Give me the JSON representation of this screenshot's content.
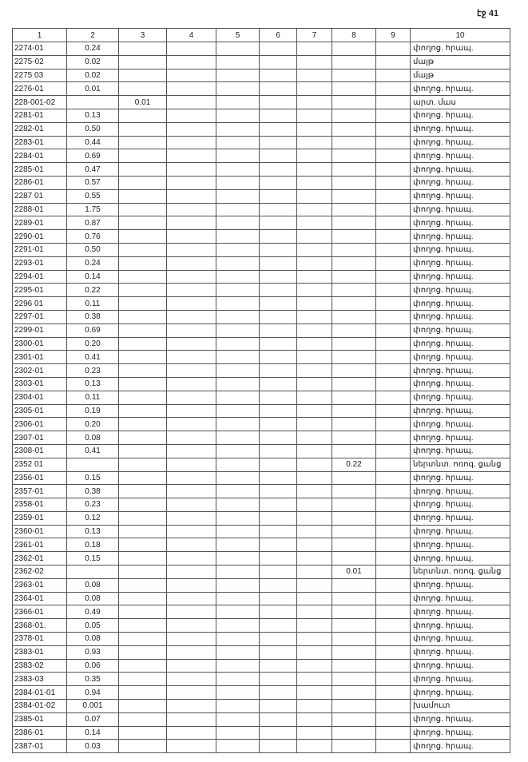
{
  "page_label": "էջ 41",
  "headers": [
    "1",
    "2",
    "3",
    "4",
    "5",
    "6",
    "7",
    "8",
    "9",
    "10"
  ],
  "rows": [
    [
      "2274-01",
      "0.24",
      "",
      "",
      "",
      "",
      "",
      "",
      "",
      "փողոց. հրապ."
    ],
    [
      "2275-02",
      "0.02",
      "",
      "",
      "",
      "",
      "",
      "",
      "",
      "մայթ"
    ],
    [
      "2275 03",
      "0.02",
      "",
      "",
      "",
      "",
      "",
      "",
      "",
      "մայթ"
    ],
    [
      "2276-01",
      "0.01",
      "",
      "",
      "",
      "",
      "",
      "",
      "",
      "փողոց. հրապ."
    ],
    [
      "228-001-02",
      "",
      "0.01",
      "",
      "",
      "",
      "",
      "",
      "",
      "արտ. մաս"
    ],
    [
      "2281-01",
      "0.13",
      "",
      "",
      "",
      "",
      "",
      "",
      "",
      "փողոց. հրապ."
    ],
    [
      "2282-01",
      "0.50",
      "",
      "",
      "",
      "",
      "",
      "",
      "",
      "փողոց. հրապ."
    ],
    [
      "2283-01",
      "0.44",
      "",
      "",
      "",
      "",
      "",
      "",
      "",
      "փողոց. հրապ."
    ],
    [
      "2284-01",
      "0.69",
      "",
      "",
      "",
      "",
      "",
      "",
      "",
      "փողոց. հրապ."
    ],
    [
      "2285-01",
      "0.47",
      "",
      "",
      "",
      "",
      "",
      "",
      "",
      "փողոց. հրապ."
    ],
    [
      "2286-01",
      "0.57",
      "",
      "",
      "",
      "",
      "",
      "",
      "",
      "փողոց. հրապ."
    ],
    [
      "2287 01",
      "0.55",
      "",
      "",
      "",
      "",
      "",
      "",
      "",
      "փողոց. հրապ."
    ],
    [
      "2288-01",
      "1.75",
      "",
      "",
      "",
      "",
      "",
      "",
      "",
      "փողոց. հրապ."
    ],
    [
      "2289-01",
      "0.87",
      "",
      "",
      "",
      "",
      "",
      "",
      "",
      "փողոց. հրապ."
    ],
    [
      "2290-01",
      "0.76",
      "",
      "",
      "",
      "",
      "",
      "",
      "",
      "փողոց. հրապ."
    ],
    [
      "2291-01",
      "0.50",
      "",
      "",
      "",
      "",
      "",
      "",
      "",
      "փողոց. հրապ."
    ],
    [
      "2293-01",
      "0.24",
      "",
      "",
      "",
      "",
      "",
      "",
      "",
      "փողոց. հրապ."
    ],
    [
      "2294-01",
      "0.14",
      "",
      "",
      "",
      "",
      "",
      "",
      "",
      "փողոց. հրապ."
    ],
    [
      "2295-01",
      "0.22",
      "",
      "",
      "",
      "",
      "",
      "",
      "",
      "փողոց. հրապ."
    ],
    [
      "2296 01",
      "0.11",
      "",
      "",
      "",
      "",
      "",
      "",
      "",
      "փողոց. հրապ."
    ],
    [
      "2297-01",
      "0.38",
      "",
      "",
      "",
      "",
      "",
      "",
      "",
      "փողոց. հրապ."
    ],
    [
      "2299-01",
      "0.69",
      "",
      "",
      "",
      "",
      "",
      "",
      "",
      "փողոց. հրապ."
    ],
    [
      "2300-01",
      "0.20",
      "",
      "",
      "",
      "",
      "",
      "",
      "",
      "փողոց. հրապ."
    ],
    [
      "2301-01",
      "0.41",
      "",
      "",
      "",
      "",
      "",
      "",
      "",
      "փողոց. հրապ."
    ],
    [
      "2302-01",
      "0.23",
      "",
      "",
      "",
      "",
      "",
      "",
      "",
      "փողոց. հրապ."
    ],
    [
      "2303-01",
      "0.13",
      "",
      "",
      "",
      "",
      "",
      "",
      "",
      "փողոց. հրապ."
    ],
    [
      "2304-01",
      "0.11",
      "",
      "",
      "",
      "",
      "",
      "",
      "",
      "փողոց. հրապ."
    ],
    [
      "2305-01",
      "0.19",
      "",
      "",
      "",
      "",
      "",
      "",
      "",
      "փողոց. հրապ."
    ],
    [
      "2306-01",
      "0.20",
      "",
      "",
      "",
      "",
      "",
      "",
      "",
      "փողոց. հրապ."
    ],
    [
      "2307-01",
      "0.08",
      "",
      "",
      "",
      "",
      "",
      "",
      "",
      "փողոց. հրապ."
    ],
    [
      "2308-01",
      "0.41",
      "",
      "",
      "",
      "",
      "",
      "",
      "",
      "փողոց. հրապ."
    ],
    [
      "2352 01",
      "",
      "",
      "",
      "",
      "",
      "",
      "0.22",
      "",
      "ներտնտ. ոռոգ. ցանց"
    ],
    [
      "2356-01",
      "0.15",
      "",
      "",
      "",
      "",
      "",
      "",
      "",
      "փողոց. հրապ."
    ],
    [
      "2357-01",
      "0.38",
      "",
      "",
      "",
      "",
      "",
      "",
      "",
      "փողոց. հրապ."
    ],
    [
      "2358-01",
      "0.23",
      "",
      "",
      "",
      "",
      "",
      "",
      "",
      "փողոց. հրապ."
    ],
    [
      "2359-01",
      "0.12",
      "",
      "",
      "",
      "",
      "",
      "",
      "",
      "փողոց. հրապ."
    ],
    [
      "2360-01",
      "0.13",
      "",
      "",
      "",
      "",
      "",
      "",
      "",
      "փողոց. հրապ."
    ],
    [
      "2361-01",
      "0.18",
      "",
      "",
      "",
      "",
      "",
      "",
      "",
      "փողոց. հրապ."
    ],
    [
      "2362-01",
      "0.15",
      "",
      "",
      "",
      "",
      "",
      "",
      "",
      "փողոց. հրապ."
    ],
    [
      "2362-02",
      "",
      "",
      "",
      "",
      "",
      "",
      "0.01",
      "",
      "ներտնտ. ոռոգ. ցանց"
    ],
    [
      "2363-01",
      "0.08",
      "",
      "",
      "",
      "",
      "",
      "",
      "",
      "փողոց. հրապ."
    ],
    [
      "2364-01",
      "0.08",
      "",
      "",
      "",
      "",
      "",
      "",
      "",
      "փողոց. հրապ."
    ],
    [
      "2366-01",
      "0.49",
      "",
      "",
      "",
      "",
      "",
      "",
      "",
      "փողոց. հրապ."
    ],
    [
      "2368-01.",
      "0.05",
      "",
      "",
      "",
      "",
      "",
      "",
      "",
      "փողոց. հրապ."
    ],
    [
      "2378-01",
      "0.08",
      "",
      "",
      "",
      "",
      "",
      "",
      "",
      "փողոց. հրապ."
    ],
    [
      "2383-01",
      "0.93",
      "",
      "",
      "",
      "",
      "",
      "",
      "",
      "փողոց. հրապ."
    ],
    [
      "2383-02",
      "0.06",
      "",
      "",
      "",
      "",
      "",
      "",
      "",
      "փողոց. հրապ."
    ],
    [
      "2383-03",
      "0.35",
      "",
      "",
      "",
      "",
      "",
      "",
      "",
      "փողոց. հրապ."
    ],
    [
      "2384-01-01",
      "0.94",
      "",
      "",
      "",
      "",
      "",
      "",
      "",
      "փողոց. հրապ."
    ],
    [
      "2384-01-02",
      "0.001",
      "",
      "",
      "",
      "",
      "",
      "",
      "",
      "խամուտ"
    ],
    [
      "2385-01",
      "0.07",
      "",
      "",
      "",
      "",
      "",
      "",
      "",
      "փողոց. հրապ."
    ],
    [
      "2386-01",
      "0.14",
      "",
      "",
      "",
      "",
      "",
      "",
      "",
      "փողոց. հրապ."
    ],
    [
      "2387-01",
      "0.03",
      "",
      "",
      "",
      "",
      "",
      "",
      "",
      "փողոց. հրապ."
    ]
  ]
}
